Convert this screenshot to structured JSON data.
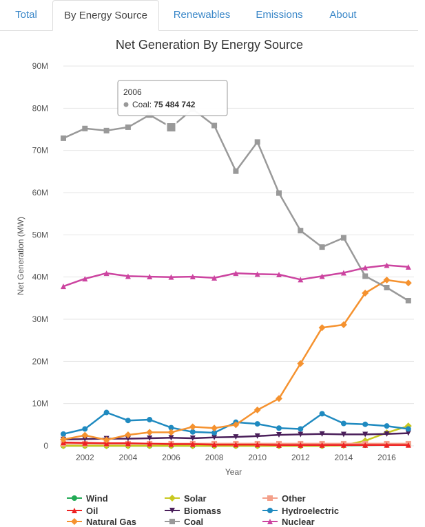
{
  "tabs": [
    {
      "label": "Total",
      "active": false
    },
    {
      "label": "By Energy Source",
      "active": true
    },
    {
      "label": "Renewables",
      "active": false
    },
    {
      "label": "Emissions",
      "active": false
    },
    {
      "label": "About",
      "active": false
    }
  ],
  "tooltip": {
    "year": "2006",
    "series": "Coal",
    "value": "75 484 742",
    "color": "#999999"
  },
  "chart_data": {
    "type": "line",
    "title": "Net Generation By Energy Source",
    "xlabel": "Year",
    "ylabel": "Net Generation (MW)",
    "ylim": [
      0,
      90000000
    ],
    "yticks": [
      0,
      10000000,
      20000000,
      30000000,
      40000000,
      50000000,
      60000000,
      70000000,
      80000000,
      90000000
    ],
    "ytick_labels": [
      "0",
      "10M",
      "20M",
      "30M",
      "40M",
      "50M",
      "60M",
      "70M",
      "80M",
      "90M"
    ],
    "xlim": [
      2001,
      2017
    ],
    "xticks": [
      2002,
      2004,
      2006,
      2008,
      2010,
      2012,
      2014,
      2016
    ],
    "grid": true,
    "legend_position": "bottom",
    "x": [
      2001,
      2002,
      2003,
      2004,
      2005,
      2006,
      2007,
      2008,
      2009,
      2010,
      2011,
      2012,
      2013,
      2014,
      2015,
      2016,
      2017
    ],
    "series": [
      {
        "name": "Wind",
        "color": "#22aa55",
        "marker": "circle",
        "values": [
          0,
          0,
          0,
          0,
          0,
          0,
          0,
          0,
          0,
          0,
          0,
          0,
          0,
          100000,
          150000,
          200000,
          300000
        ]
      },
      {
        "name": "Solar",
        "color": "#c8c820",
        "marker": "diamond",
        "values": [
          0,
          0,
          0,
          0,
          0,
          0,
          0,
          0,
          0,
          0,
          0,
          0,
          0,
          100000,
          1200000,
          3100000,
          4700000
        ]
      },
      {
        "name": "Other",
        "color": "#f4a08a",
        "marker": "square",
        "values": [
          500000,
          500000,
          500000,
          500000,
          500000,
          500000,
          500000,
          500000,
          500000,
          500000,
          500000,
          500000,
          500000,
          500000,
          500000,
          500000,
          500000
        ]
      },
      {
        "name": "Oil",
        "color": "#ee2222",
        "marker": "triangle",
        "values": [
          800000,
          700000,
          600000,
          600000,
          500000,
          400000,
          400000,
          300000,
          300000,
          300000,
          200000,
          200000,
          200000,
          200000,
          200000,
          200000,
          200000
        ]
      },
      {
        "name": "Biomass",
        "color": "#4a1f5a",
        "marker": "triangle-down",
        "values": [
          1500000,
          1600000,
          1700000,
          1700000,
          1800000,
          1900000,
          1800000,
          2000000,
          2100000,
          2300000,
          2600000,
          2700000,
          2800000,
          2700000,
          2700000,
          2800000,
          3000000
        ]
      },
      {
        "name": "Hydroelectric",
        "color": "#1f8ac0",
        "marker": "circle",
        "values": [
          2800000,
          4000000,
          7900000,
          6000000,
          6200000,
          4300000,
          3300000,
          3100000,
          5600000,
          5200000,
          4200000,
          4000000,
          7600000,
          5300000,
          5100000,
          4700000,
          4000000
        ]
      },
      {
        "name": "Natural Gas",
        "color": "#f5922f",
        "marker": "diamond",
        "values": [
          1500000,
          2500000,
          1400000,
          2600000,
          3200000,
          3200000,
          4500000,
          4200000,
          5000000,
          8500000,
          11200000,
          19500000,
          28000000,
          28700000,
          36200000,
          39300000,
          38600000
        ]
      },
      {
        "name": "Coal",
        "color": "#999999",
        "marker": "square",
        "values": [
          72900000,
          75200000,
          74700000,
          75500000,
          78400000,
          75484742,
          79800000,
          75900000,
          65100000,
          72000000,
          59900000,
          51000000,
          47100000,
          49300000,
          40200000,
          37500000,
          34400000
        ]
      },
      {
        "name": "Nuclear",
        "color": "#cc44a0",
        "marker": "triangle",
        "values": [
          37800000,
          39600000,
          40900000,
          40200000,
          40100000,
          40000000,
          40100000,
          39800000,
          40900000,
          40700000,
          40600000,
          39400000,
          40200000,
          41000000,
          42200000,
          42800000,
          42400000
        ]
      }
    ]
  }
}
